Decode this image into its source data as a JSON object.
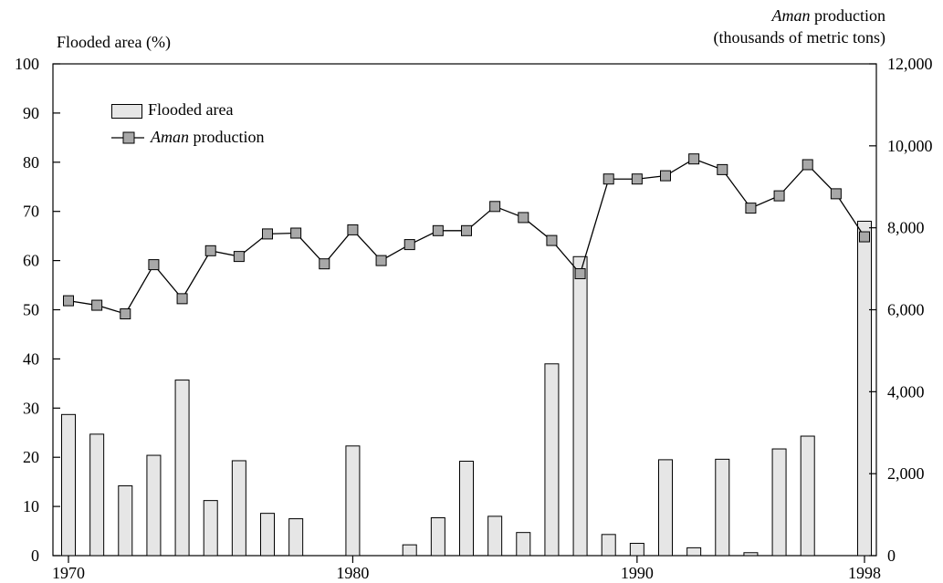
{
  "chart_data": {
    "type": "bar+line",
    "x_ticks": [
      1970,
      1980,
      1990,
      1998
    ],
    "left_axis": {
      "label": "Flooded area (%)",
      "ylim": [
        0,
        100
      ],
      "ticks": [
        0,
        10,
        20,
        30,
        40,
        50,
        60,
        70,
        80,
        90,
        100
      ]
    },
    "right_axis": {
      "label_italic": "Aman",
      "label_rest": " production",
      "label_line2": "(thousands of metric tons)",
      "ylim": [
        0,
        12000
      ],
      "ticks": [
        "0",
        "2,000",
        "4,000",
        "6,000",
        "8,000",
        "10,000",
        "12,000"
      ]
    },
    "legend": {
      "bar_label": "Flooded area",
      "line_label_italic": "Aman",
      "line_label_rest": " production",
      "position": "top-left"
    },
    "years": [
      1970,
      1971,
      1972,
      1973,
      1974,
      1975,
      1976,
      1977,
      1978,
      1979,
      1980,
      1981,
      1982,
      1983,
      1984,
      1985,
      1986,
      1987,
      1988,
      1989,
      1990,
      1991,
      1992,
      1993,
      1994,
      1995,
      1996,
      1997,
      1998
    ],
    "series": [
      {
        "name": "Flooded area",
        "kind": "bar",
        "axis": "left",
        "values": [
          28.7,
          24.7,
          14.2,
          20.4,
          35.7,
          11.2,
          19.3,
          8.6,
          7.5,
          0,
          22.3,
          0,
          2.2,
          7.7,
          19.2,
          8.0,
          4.7,
          39.0,
          60.8,
          4.3,
          2.5,
          19.5,
          1.6,
          19.6,
          0.6,
          21.7,
          24.3,
          0,
          68.0
        ]
      },
      {
        "name": "Aman production",
        "kind": "line",
        "axis": "right",
        "values": [
          6220,
          6110,
          5900,
          7100,
          6270,
          7440,
          7300,
          7850,
          7870,
          7120,
          7950,
          7200,
          7590,
          7930,
          7930,
          8520,
          8250,
          7690,
          6880,
          9190,
          9190,
          9270,
          9680,
          9420,
          8480,
          8780,
          9540,
          8830,
          7780
        ]
      }
    ],
    "colors": {
      "bar_fill": "#e6e6e6",
      "marker_fill": "#a8a8a8",
      "line": "#000000"
    }
  }
}
